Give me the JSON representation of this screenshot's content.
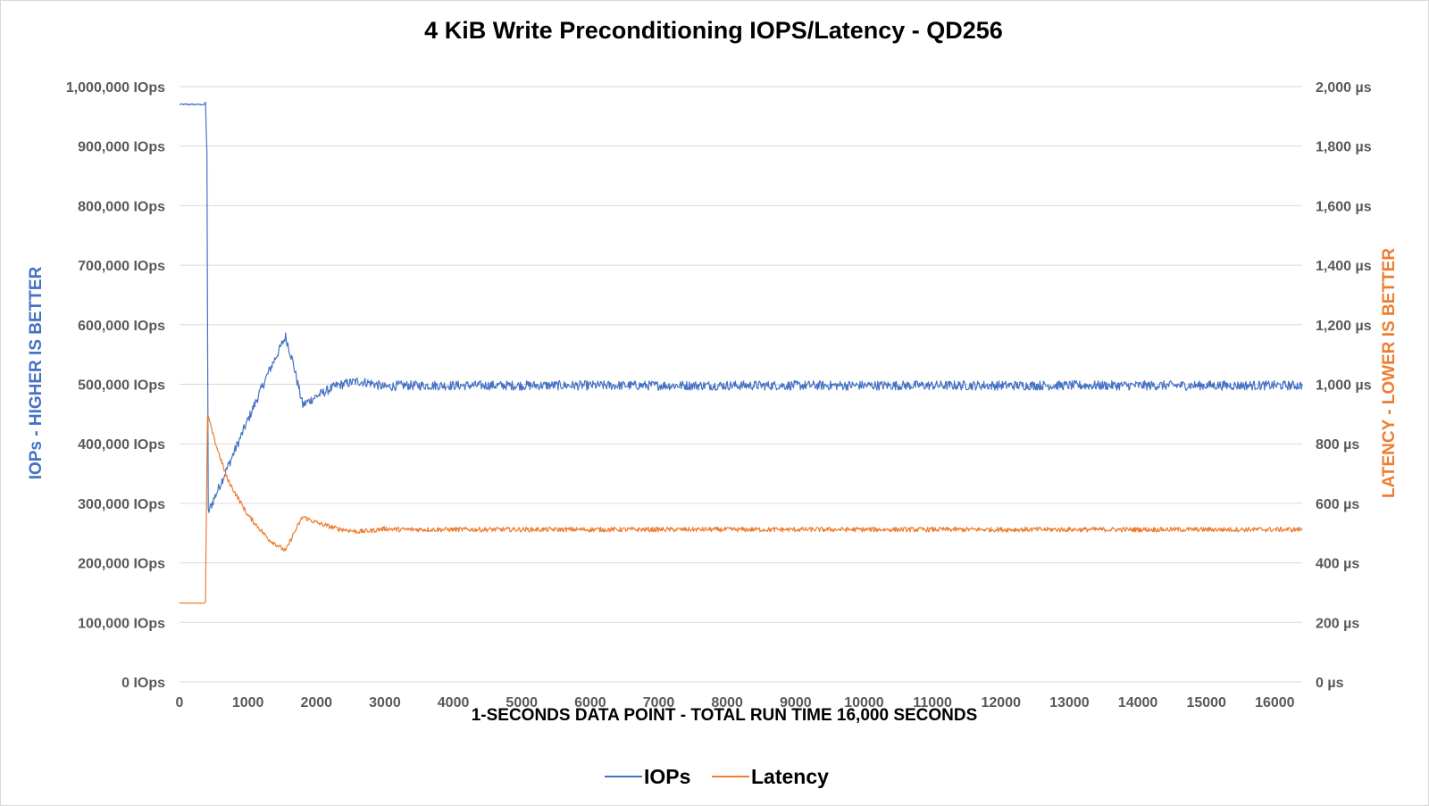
{
  "chart_data": {
    "type": "line",
    "title": "4 KiB Write Preconditioning IOPS/Latency - QD256",
    "xlabel": "1-SECONDS DATA POINT - TOTAL RUN TIME 16,000 SECONDS",
    "ylabel_left": "IOPs - HIGHER IS BETTER",
    "ylabel_right": "LATENCY - LOWER IS BETTER",
    "xlim": [
      0,
      16400
    ],
    "ylim_left": [
      0,
      1000000
    ],
    "ylim_right": [
      0,
      2000
    ],
    "x_ticks": [
      "0",
      "1000",
      "2000",
      "3000",
      "4000",
      "5000",
      "6000",
      "7000",
      "8000",
      "9000",
      "10000",
      "11000",
      "12000",
      "13000",
      "14000",
      "15000",
      "16000"
    ],
    "x_tick_values": [
      0,
      1000,
      2000,
      3000,
      4000,
      5000,
      6000,
      7000,
      8000,
      9000,
      10000,
      11000,
      12000,
      13000,
      14000,
      15000,
      16000
    ],
    "y_ticks_left": [
      "0 IOps",
      "100,000 IOps",
      "200,000 IOps",
      "300,000 IOps",
      "400,000 IOps",
      "500,000 IOps",
      "600,000 IOps",
      "700,000 IOps",
      "800,000 IOps",
      "900,000 IOps",
      "1,000,000 IOps"
    ],
    "y_tick_values_left": [
      0,
      100000,
      200000,
      300000,
      400000,
      500000,
      600000,
      700000,
      800000,
      900000,
      1000000
    ],
    "y_ticks_right": [
      "0 µs",
      "200 µs",
      "400 µs",
      "600 µs",
      "800 µs",
      "1,000 µs",
      "1,200 µs",
      "1,400 µs",
      "1,600 µs",
      "1,800 µs",
      "2,000 µs"
    ],
    "y_tick_values_right": [
      0,
      200,
      400,
      600,
      800,
      1000,
      1200,
      1400,
      1600,
      1800,
      2000
    ],
    "grid": true,
    "legend_position": "bottom",
    "series": [
      {
        "name": "IOPs",
        "axis": "left",
        "color": "#4472C4",
        "x": [
          0,
          380,
          400,
          420,
          700,
          1000,
          1300,
          1550,
          1650,
          1800,
          2000,
          2300,
          2600,
          2800,
          3000,
          3200,
          16400
        ],
        "y": [
          970000,
          970000,
          890000,
          285000,
          360000,
          440000,
          520000,
          580000,
          540000,
          465000,
          480000,
          498000,
          505000,
          502000,
          495000,
          498000,
          498000
        ],
        "noise": 8000
      },
      {
        "name": "Latency",
        "axis": "right",
        "color": "#ED7D31",
        "x": [
          0,
          380,
          395,
          410,
          500,
          700,
          1000,
          1300,
          1550,
          1650,
          1800,
          2000,
          2300,
          2600,
          2800,
          3000,
          3200,
          16400
        ],
        "y": [
          265,
          265,
          640,
          900,
          820,
          680,
          560,
          480,
          440,
          490,
          555,
          535,
          515,
          505,
          508,
          515,
          512,
          512
        ],
        "noise": 8
      }
    ]
  }
}
